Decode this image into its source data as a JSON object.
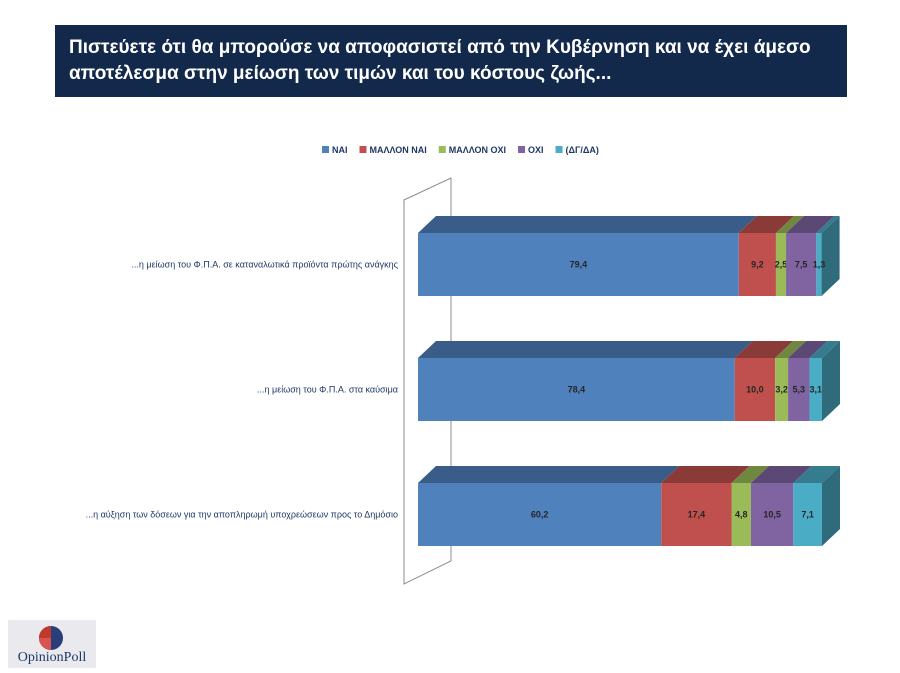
{
  "title": {
    "line1": "Πιστεύετε ότι θα μπορούσε να αποφασιστεί από την Κυβέρνηση και να έχει άμεσο",
    "line2": "αποτέλεσμα στην μείωση των τιμών και του κόστους ζωής..."
  },
  "logo": {
    "text": "OpinionPoll"
  },
  "chart_data": {
    "type": "bar",
    "orientation": "horizontal",
    "stacked": true,
    "style": "3d",
    "xlim": [
      0,
      100
    ],
    "legend_position": "top",
    "grid": false,
    "categories": [
      "...η μείωση του Φ.Π.Α. σε καταναλωτικά προϊόντα πρώτης ανάγκης",
      "...η μείωση του Φ.Π.Α. στα καύσιμα",
      "...η αύξηση των δόσεων για την αποπληρωμή υποχρεώσεων προς το Δημόσιο"
    ],
    "series": [
      {
        "name": "ΝΑΙ",
        "color": "#4f81bd",
        "values": [
          79.4,
          78.4,
          60.2
        ],
        "labels": [
          "79,4",
          "78,4",
          "60,2"
        ]
      },
      {
        "name": "ΜΑΛΛΟΝ ΝΑΙ",
        "color": "#c0504d",
        "values": [
          9.2,
          10.0,
          17.4
        ],
        "labels": [
          "9,2",
          "10,0",
          "17,4"
        ]
      },
      {
        "name": "ΜΑΛΛΟΝ ΟΧΙ",
        "color": "#9bbb59",
        "values": [
          2.5,
          3.2,
          4.8
        ],
        "labels": [
          "2,5",
          "3,2",
          "4,8"
        ]
      },
      {
        "name": "ΟΧΙ",
        "color": "#8064a2",
        "values": [
          7.5,
          5.3,
          10.5
        ],
        "labels": [
          "7,5",
          "5,3",
          "10,5"
        ]
      },
      {
        "name": "(ΔΓ/ΔΑ)",
        "color": "#4bacc6",
        "values": [
          1.3,
          3.1,
          7.1
        ],
        "labels": [
          "1,3",
          "3,1",
          "7,1"
        ]
      }
    ]
  }
}
